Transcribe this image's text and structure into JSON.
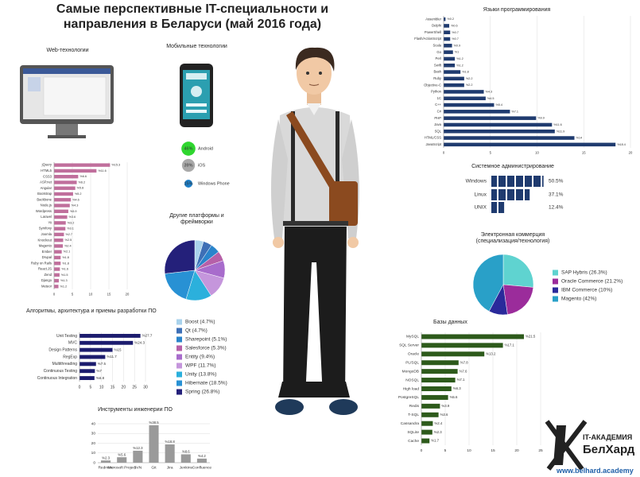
{
  "title": "Самые перспективные IT-специальности и направления в Беларуси (май 2016 года)",
  "logo": {
    "line1": "IT-АКАДЕМИЯ",
    "line2": "БелХард",
    "url": "www.belhard.academy"
  },
  "chart_data": [
    {
      "type": "barh",
      "title": "Web-технологии",
      "categories": [
        "jQuery",
        "HTML5",
        "CSS3",
        "ASP.net",
        "Angular",
        "Bootstrap",
        "Backbone",
        "Node.js",
        "Wordpress",
        "Laravel",
        "Yii",
        "Symfony",
        "Joomla",
        "Knockout",
        "Magento",
        "Ember",
        "Drupal",
        "Ruby on Rails",
        "React.JS",
        "Zend",
        "Django",
        "Meteor"
      ],
      "values": [
        15.3,
        11.6,
        6.6,
        6.2,
        5.8,
        5.2,
        4.6,
        4.3,
        3.9,
        3.6,
        3.2,
        3.1,
        2.7,
        2.5,
        2.4,
        2.1,
        1.8,
        1.8,
        1.6,
        1.5,
        1.3,
        1.2
      ],
      "value_labels": [
        "%15.3",
        "%11.6",
        "%6.6",
        "%6.2",
        "%5.8",
        "%5.2",
        "%4.6",
        "%4.3",
        "%3.9",
        "%3.6",
        "%3.2",
        "%3.1",
        "%2.7",
        "%2.5",
        "%2.4",
        "%2.1",
        "%1.8",
        "%1.8",
        "%1.6",
        "%1.5",
        "%1.3",
        "%1.2"
      ],
      "color": "#c06f9c",
      "xlim": [
        0,
        20
      ],
      "xticks": [
        0,
        5,
        10,
        15,
        20
      ],
      "grid": true
    },
    {
      "type": "bubble",
      "title": "Мобильные технологии",
      "categories": [
        "Android",
        "iOS",
        "Windows Phone"
      ],
      "values": [
        46,
        39,
        15
      ],
      "value_labels": [
        "46%",
        "39%",
        "15%"
      ],
      "colors": [
        "#2fd62f",
        "#a9a9a9",
        "#1c7fc9"
      ]
    },
    {
      "type": "pie",
      "title": "Другие платформы и фреймворки",
      "categories": [
        "Boost (4.7%)",
        "Qt (4.7%)",
        "Sharepoint (5.1%)",
        "Salesforce (5.3%)",
        "Entity (9.4%)",
        "WPF (11.7%)",
        "Unity (13.8%)",
        "Hibernate (18.5%)",
        "Spring (26.8%)"
      ],
      "values": [
        4.7,
        4.7,
        5.1,
        5.3,
        9.4,
        11.7,
        13.8,
        18.5,
        26.8
      ],
      "colors": [
        "#a9d2ec",
        "#3d6fb6",
        "#2a84cb",
        "#b660a8",
        "#a86ccc",
        "#c596dc",
        "#2bb0dc",
        "#2891d4",
        "#24207a"
      ]
    },
    {
      "type": "barh",
      "title": "Алгоритмы, архитектура и приемы разработки ПО",
      "categories": [
        "Unit Testing",
        "MVC",
        "Design Patterns",
        "RegExp",
        "Multithreading",
        "Continuous Testing",
        "Continuous Integration"
      ],
      "values": [
        27.7,
        24.3,
        15,
        11.7,
        7.5,
        7,
        6.8
      ],
      "value_labels": [
        "%27.7",
        "%24.3",
        "%15",
        "%11.7",
        "%7.5",
        "%7",
        "%6.8"
      ],
      "color": "#1c1c6e",
      "xlim": [
        0,
        30
      ],
      "xticks": [
        0,
        5,
        10,
        15,
        20,
        25,
        30
      ],
      "grid": true
    },
    {
      "type": "bar",
      "title": "Инструменты инженерии ПО",
      "categories": [
        "Redmine",
        "Microsoft Project",
        "SVN",
        "Git",
        "Jira",
        "Jenkins",
        "Confluence"
      ],
      "values": [
        2.3,
        5.6,
        12.3,
        38.5,
        18.8,
        8.6,
        4.2
      ],
      "value_labels": [
        "%2.3",
        "%5.6",
        "%12.3",
        "%38.5",
        "%18.8",
        "%8.6",
        "%4.2"
      ],
      "color": "#9a9a9a",
      "ylim": [
        0,
        40
      ],
      "yticks": [
        0,
        10,
        20,
        30,
        40
      ],
      "grid": true
    },
    {
      "type": "barh",
      "title": "Языки программирования",
      "categories": [
        "Assembler",
        "Delphi",
        "PowerShell",
        "Flash/ActionScript",
        "Scala",
        "Go",
        "Perl",
        "Swift",
        "Bash",
        "Ruby",
        "Objective-C",
        "Python",
        "1C",
        "C++",
        "C#",
        "PHP",
        "Java",
        "SQL",
        "HTML/CSS",
        "JavaScript"
      ],
      "values": [
        0.2,
        0.6,
        0.7,
        0.7,
        0.9,
        1,
        1.2,
        1.2,
        1.8,
        2.2,
        2.2,
        4.3,
        4.5,
        5.4,
        7.1,
        9.9,
        11.6,
        11.9,
        14,
        18.4
      ],
      "value_labels": [
        "%0.2",
        "%0.6",
        "%0.7",
        "%0.7",
        "%0.9",
        "%1",
        "%1.2",
        "%1.2",
        "%1.8",
        "%2.2",
        "%2.2",
        "%4.3",
        "%4.5",
        "%5.4",
        "%7.1",
        "%9.9",
        "%11.6",
        "%11.9",
        "%14",
        "%18.4"
      ],
      "color": "#1f3b6f",
      "xlim": [
        0,
        20
      ],
      "xticks": [
        0,
        5,
        10,
        15,
        20
      ],
      "grid": true
    },
    {
      "type": "pictogram",
      "title": "Системное администрирование",
      "categories": [
        "Windows",
        "Linux",
        "UNIX"
      ],
      "values": [
        50.5,
        37.1,
        12.4
      ],
      "value_labels": [
        "50.5%",
        "37.1%",
        "12.4%"
      ],
      "color": "#1f3b6f"
    },
    {
      "type": "pie",
      "title": "Электронная коммерция (специализация/технология)",
      "categories": [
        "SAP Hybris (26.3%)",
        "Oracle Commerce (21.2%)",
        "IBM Commerce (10%)",
        "Magento (42%)"
      ],
      "values": [
        26.3,
        21.2,
        10,
        42
      ],
      "colors": [
        "#5fd3d0",
        "#9b2c9b",
        "#2a2a9b",
        "#29a0c8"
      ]
    },
    {
      "type": "barh",
      "title": "Базы данных",
      "categories": [
        "MySQL",
        "SQL Server",
        "Oracle",
        "PL/SQL",
        "MongoDB",
        "NOSQL",
        "High load",
        "PostgreSQL",
        "Redis",
        "T-SQL",
        "Cassandra",
        "SQLite",
        "Cache"
      ],
      "values": [
        21.5,
        17.1,
        13.2,
        7.8,
        7.6,
        7.1,
        6.3,
        5.6,
        3.9,
        3.6,
        2.4,
        2.3,
        1.7
      ],
      "value_labels": [
        "%21.5",
        "%17.1",
        "%13.2",
        "%7.8",
        "%7.6",
        "%7.1",
        "%6.3",
        "%5.6",
        "%3.9",
        "%3.6",
        "%2.4",
        "%2.3",
        "%1.7"
      ],
      "color": "#2d5a1b",
      "xlim": [
        0,
        25
      ],
      "xticks": [
        0,
        5,
        10,
        15,
        20,
        25
      ],
      "grid": true
    }
  ]
}
